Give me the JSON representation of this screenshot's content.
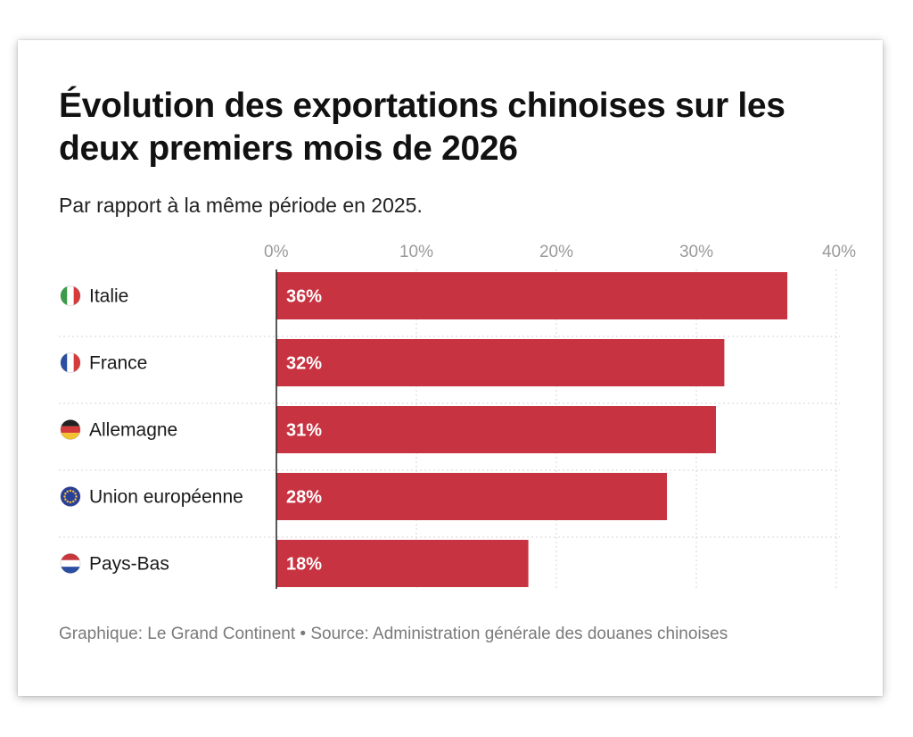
{
  "chart_data": {
    "type": "bar",
    "orientation": "horizontal",
    "title": "Évolution des exportations chinoises sur les deux premiers mois de 2026",
    "subtitle": "Par rapport à la même période en 2025.",
    "categories": [
      "Italie",
      "France",
      "Allemagne",
      "Union européenne",
      "Pays-Bas"
    ],
    "icons": [
      "italy-flag-icon",
      "france-flag-icon",
      "germany-flag-icon",
      "eu-flag-icon",
      "netherlands-flag-icon"
    ],
    "values": [
      36.5,
      32,
      31.4,
      27.9,
      18
    ],
    "value_labels": [
      "36%",
      "32%",
      "31%",
      "28%",
      "18%"
    ],
    "xlim": [
      0,
      40
    ],
    "xticks": [
      "0%",
      "10%",
      "20%",
      "30%",
      "40%"
    ],
    "xtick_values": [
      0,
      10,
      20,
      30,
      40
    ],
    "grid": true,
    "bar_color": "#c83341",
    "source": "Graphique: Le Grand Continent • Source: Administration générale des douanes chinoises"
  }
}
